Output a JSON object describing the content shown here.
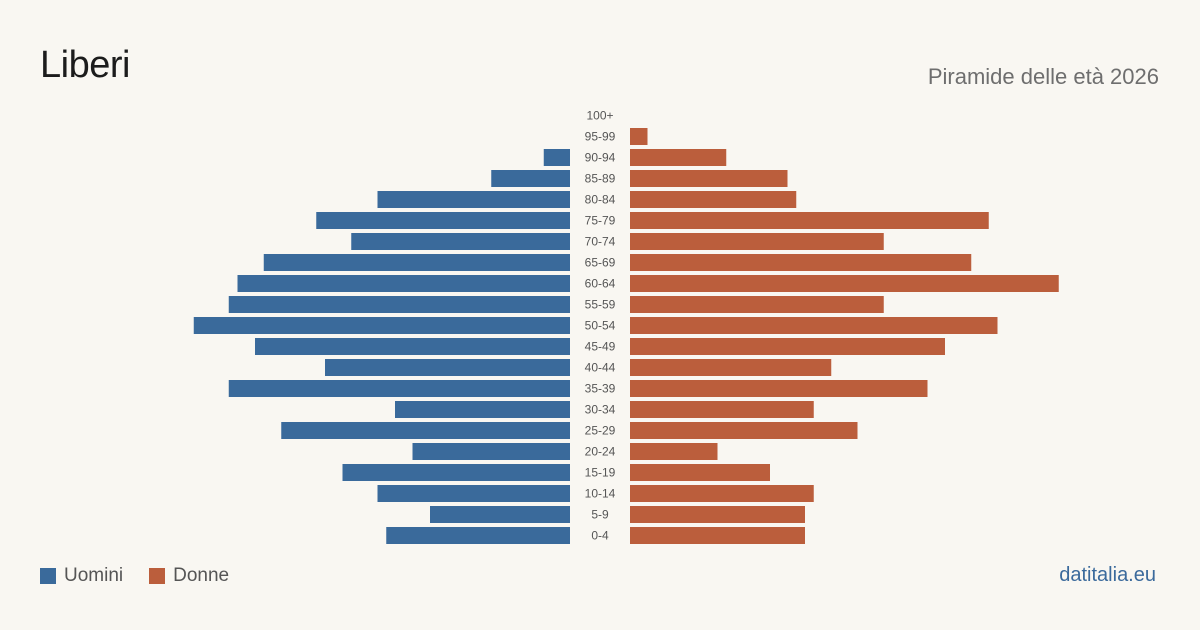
{
  "header": {
    "title": "Liberi",
    "subtitle": "Piramide delle età 2026"
  },
  "legend": {
    "men_label": "Uomini",
    "women_label": "Donne"
  },
  "brand": "datitalia.eu",
  "colors": {
    "men": "#3a6a9b",
    "women": "#bb5e3c",
    "background": "#f9f7f2",
    "age_label": "#555555"
  },
  "chart_data": {
    "type": "bar",
    "orientation": "horizontal-pyramid",
    "categories": [
      "100+",
      "95-99",
      "90-94",
      "85-89",
      "80-84",
      "75-79",
      "70-74",
      "65-69",
      "60-64",
      "55-59",
      "50-54",
      "45-49",
      "40-44",
      "35-39",
      "30-34",
      "25-29",
      "20-24",
      "15-19",
      "10-14",
      "5-9",
      "0-4"
    ],
    "series": [
      {
        "name": "Uomini",
        "values": [
          0,
          0,
          3,
          9,
          22,
          29,
          25,
          35,
          38,
          39,
          43,
          36,
          28,
          39,
          20,
          33,
          18,
          26,
          22,
          16,
          21
        ]
      },
      {
        "name": "Donne",
        "values": [
          0,
          2,
          11,
          18,
          19,
          41,
          29,
          39,
          49,
          29,
          42,
          36,
          23,
          34,
          21,
          26,
          10,
          16,
          21,
          20,
          20
        ]
      }
    ]
  }
}
